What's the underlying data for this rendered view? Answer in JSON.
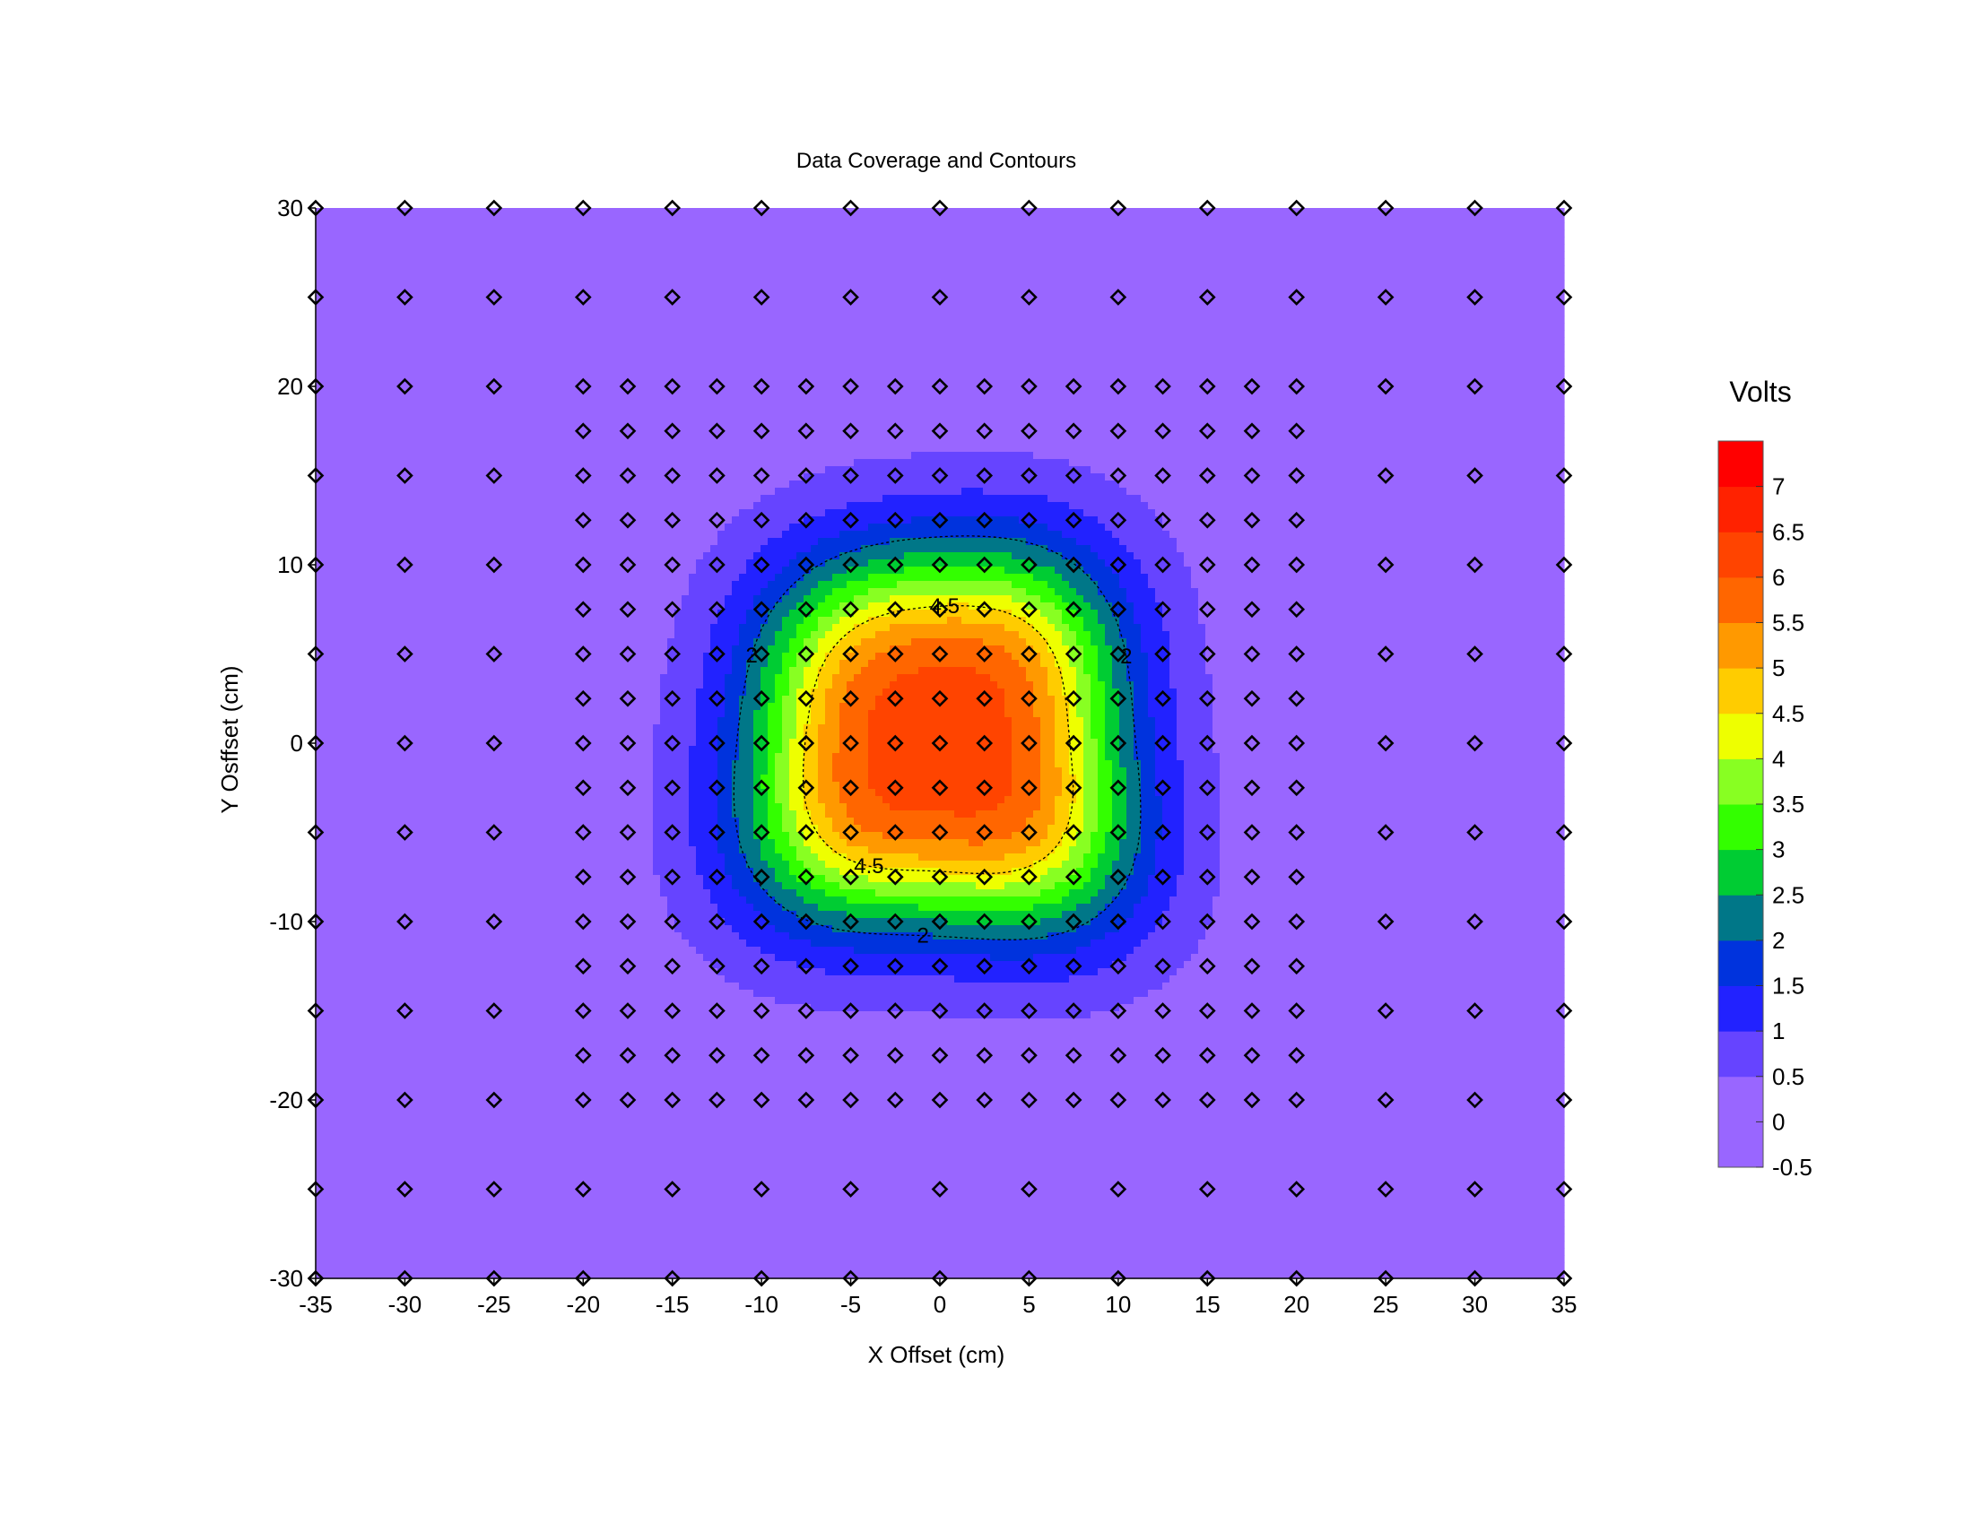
{
  "chart_data": {
    "type": "heatmap",
    "subtype": "filled-contour",
    "title": "Data Coverage and Contours",
    "xlabel": "X Offset (cm)",
    "ylabel": "Y Osffset (cm)",
    "xlim": [
      -35,
      35
    ],
    "ylim": [
      -30,
      30
    ],
    "x_ticks": [
      "-35",
      "-30",
      "-25",
      "-20",
      "-15",
      "-10",
      "-5",
      "0",
      "5",
      "10",
      "15",
      "20",
      "25",
      "30",
      "35"
    ],
    "y_ticks": [
      "30",
      "20",
      "10",
      "0",
      "-10",
      "-20",
      "-30"
    ],
    "y_tick_values": [
      30,
      20,
      10,
      0,
      -10,
      -20,
      -30
    ],
    "grid": false,
    "colorbar": {
      "title": "Volts",
      "labels": [
        "7",
        "6.5",
        "6",
        "5.5",
        "5",
        "4.5",
        "4",
        "3.5",
        "3",
        "2.5",
        "2",
        "1.5",
        "1",
        "0.5",
        "0",
        "-0.5"
      ],
      "levels": [
        -0.5,
        0,
        0.5,
        1,
        1.5,
        2,
        2.5,
        3,
        3.5,
        4,
        4.5,
        5,
        5.5,
        6,
        6.5,
        7,
        7.5
      ],
      "colors": [
        "#9966ff",
        "#9966ff",
        "#6644ff",
        "#2222ff",
        "#0033dd",
        "#007788",
        "#00cc33",
        "#33ff00",
        "#88ff22",
        "#eeff00",
        "#ffcc00",
        "#ff9900",
        "#ff6600",
        "#ff4400",
        "#ff2200",
        "#ff0000"
      ]
    },
    "field_model": {
      "shape": "radial-peak",
      "center": [
        0,
        0
      ],
      "peak_volts": 6.2,
      "baseline_volts": -0.3,
      "half_width_cm": 10.2
    },
    "contour_labels": [
      "4.5",
      "2",
      "2",
      "4.5",
      "2"
    ],
    "coarse_grid": {
      "x": [
        -35,
        -30,
        -25,
        -20,
        -15,
        -10,
        -5,
        0,
        5,
        10,
        15,
        20,
        25,
        30,
        35
      ],
      "y": [
        -30,
        -25,
        -20,
        -15,
        -10,
        -5,
        0,
        5,
        10,
        15,
        20,
        25,
        30
      ]
    },
    "fine_grid": {
      "x": [
        -20,
        -17.5,
        -15,
        -12.5,
        -10,
        -7.5,
        -5,
        -2.5,
        0,
        2.5,
        5,
        7.5,
        10,
        12.5,
        15,
        17.5,
        20
      ],
      "y": [
        -20,
        -17.5,
        -15,
        -12.5,
        -10,
        -7.5,
        -5,
        -2.5,
        0,
        2.5,
        5,
        7.5,
        10,
        12.5,
        15,
        17.5,
        20
      ]
    },
    "marker": "diamond"
  }
}
